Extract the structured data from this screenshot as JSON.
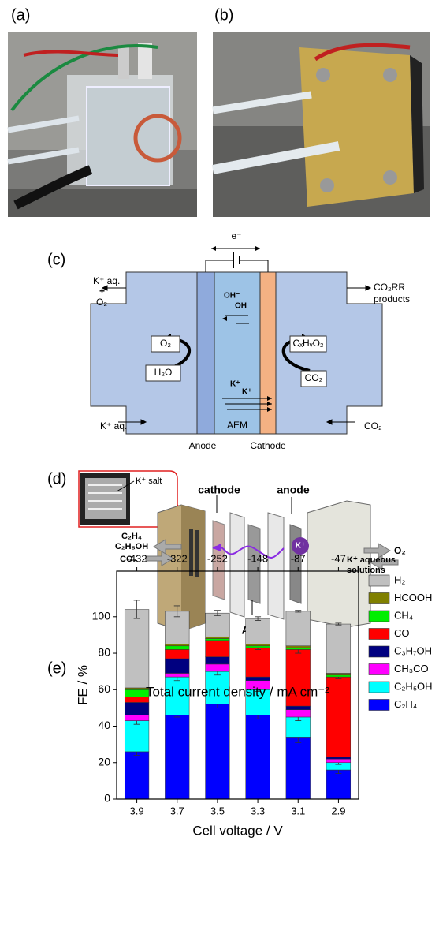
{
  "panels": {
    "a": "(a)",
    "b": "(b)",
    "c": "(c)",
    "d": "(d)",
    "e": "(e)"
  },
  "diagram_c": {
    "electron": "e⁻",
    "left_top": [
      "K⁺ aq.",
      "+",
      "O₂"
    ],
    "right_top": [
      "CO₂RR",
      "products"
    ],
    "oh": [
      "OH⁻",
      "OH⁻"
    ],
    "anode_out": "O₂",
    "anode_in": "H₂O",
    "cathode_out": "CₓHᵧO₂",
    "cathode_in": "CO₂",
    "k": [
      "K⁺",
      "K⁺"
    ],
    "membrane": "AEM",
    "left_bottom": "K⁺ aq.",
    "right_bottom": "CO₂",
    "anode": "Anode",
    "cathode": "Cathode"
  },
  "diagram_d": {
    "salt": "K⁺ salt",
    "cathode": "cathode",
    "anode": "anode",
    "products": [
      "C₂H₄",
      "C₂H₅OH"
    ],
    "co2": "CO₂",
    "ion": "K⁺",
    "o2": "O₂",
    "solution": [
      "K⁺ aqueous",
      "solutions"
    ],
    "membrane": "AEM"
  },
  "chart_data": {
    "type": "stacked_bar",
    "title": "Total current density / mA cm⁻²",
    "x_label": "Cell voltage / V",
    "y_label": "FE / %",
    "categories": [
      3.9,
      3.7,
      3.5,
      3.3,
      3.1,
      2.9
    ],
    "top_labels": [
      -432,
      -322,
      -252,
      -148,
      -87,
      -47
    ],
    "ylim": [
      0,
      125
    ],
    "yticks": [
      0,
      20,
      40,
      60,
      80,
      100
    ],
    "series": [
      {
        "name": "C₂H₄",
        "color": "#0000ff",
        "values": [
          26,
          46,
          52,
          46,
          34,
          16
        ],
        "errors": [
          2,
          1,
          2,
          2,
          3,
          2
        ]
      },
      {
        "name": "C₂H₅OH",
        "color": "#00ffff",
        "values": [
          17,
          21,
          18,
          14,
          11,
          4
        ],
        "errors": [
          2,
          2,
          2,
          1,
          2,
          1
        ]
      },
      {
        "name": "CH₃CO",
        "color": "#ff00ff",
        "values": [
          3,
          2,
          4,
          5,
          4,
          2
        ]
      },
      {
        "name": "C₃H₇OH",
        "color": "#000080",
        "values": [
          7,
          8,
          4,
          2,
          2,
          1
        ]
      },
      {
        "name": "CO",
        "color": "#ff0000",
        "values": [
          3,
          5,
          9,
          16,
          31,
          44
        ],
        "errors": [
          null,
          null,
          null,
          1,
          2,
          1
        ]
      },
      {
        "name": "CH₄",
        "color": "#00ee00",
        "values": [
          4,
          2,
          1,
          1,
          1,
          1
        ]
      },
      {
        "name": "HCOOH",
        "color": "#808000",
        "values": [
          1,
          1,
          1,
          1,
          1,
          1
        ]
      },
      {
        "name": "H₂",
        "color": "#c0c0c0",
        "values": [
          43,
          18,
          13,
          14,
          19,
          27
        ],
        "errors": [
          5,
          3,
          1.5,
          1,
          0.5,
          0.5
        ]
      }
    ]
  }
}
